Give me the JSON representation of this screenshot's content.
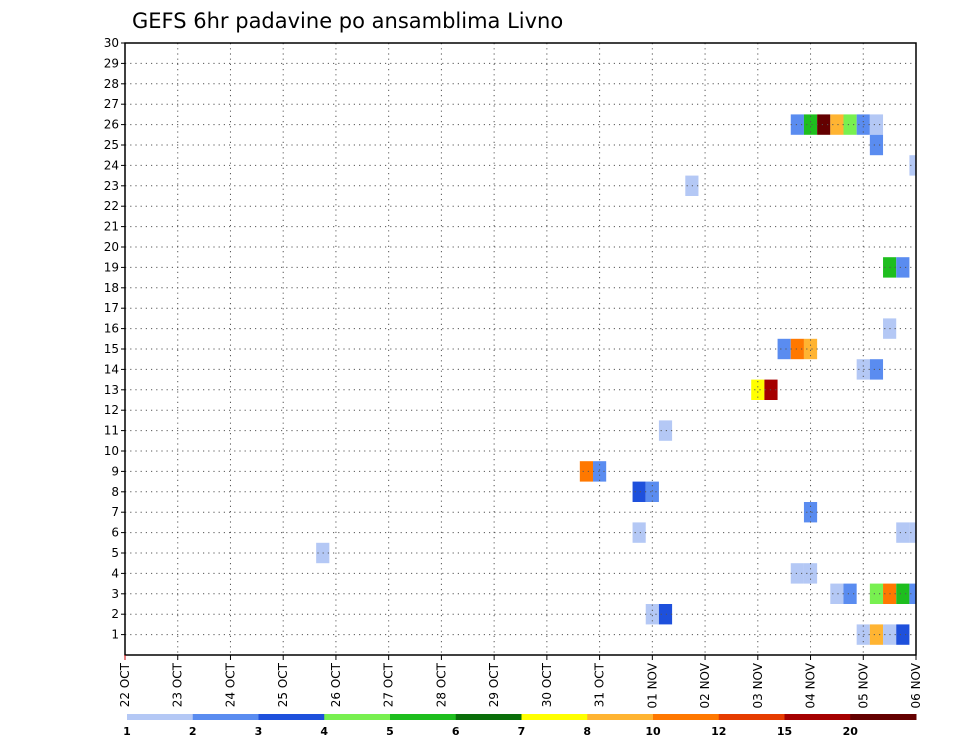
{
  "chart_data": {
    "type": "heatmap",
    "title": "GEFS 6hr padavine po ansamblima Livno",
    "xlabel": "",
    "ylabel": "",
    "x_ticks": [
      "22 OCT",
      "23 OCT",
      "24 OCT",
      "25 OCT",
      "26 OCT",
      "27 OCT",
      "28 OCT",
      "29 OCT",
      "30 OCT",
      "31 OCT",
      "01 NOV",
      "02 NOV",
      "03 NOV",
      "04 NOV",
      "05 NOV",
      "06 NOV"
    ],
    "y_ticks": [
      1,
      2,
      3,
      4,
      5,
      6,
      7,
      8,
      9,
      10,
      11,
      12,
      13,
      14,
      15,
      16,
      17,
      18,
      19,
      20,
      21,
      22,
      23,
      24,
      25,
      26,
      27,
      28,
      29,
      30
    ],
    "ylim": [
      0,
      30
    ],
    "grid": true,
    "colorbar": {
      "labels": [
        "1",
        "2",
        "3",
        "4",
        "5",
        "6",
        "7",
        "8",
        "10",
        "12",
        "15",
        "20"
      ],
      "colors": [
        "#b4c8f5",
        "#5a8cf0",
        "#1e50dc",
        "#78f050",
        "#1ebe1e",
        "#0a6e0a",
        "#ffff00",
        "#ffb432",
        "#ff7800",
        "#e63c00",
        "#a50000",
        "#640000"
      ]
    },
    "cells": [
      {
        "member": 26,
        "step": 55,
        "level": 2
      },
      {
        "member": 26,
        "step": 56,
        "level": 5
      },
      {
        "member": 26,
        "step": 57,
        "level": 12
      },
      {
        "member": 26,
        "step": 58,
        "level": 8
      },
      {
        "member": 26,
        "step": 59,
        "level": 4
      },
      {
        "member": 26,
        "step": 60,
        "level": 2
      },
      {
        "member": 26,
        "step": 61,
        "level": 1
      },
      {
        "member": 25,
        "step": 61,
        "level": 2
      },
      {
        "member": 24,
        "step": 64,
        "level": 1
      },
      {
        "member": 23,
        "step": 47,
        "level": 1
      },
      {
        "member": 19,
        "step": 62,
        "level": 5
      },
      {
        "member": 19,
        "step": 63,
        "level": 2
      },
      {
        "member": 16,
        "step": 62,
        "level": 1
      },
      {
        "member": 15,
        "step": 54,
        "level": 2
      },
      {
        "member": 15,
        "step": 55,
        "level": 9
      },
      {
        "member": 15,
        "step": 56,
        "level": 8
      },
      {
        "member": 14,
        "step": 60,
        "level": 1
      },
      {
        "member": 14,
        "step": 61,
        "level": 2
      },
      {
        "member": 13,
        "step": 52,
        "level": 7
      },
      {
        "member": 13,
        "step": 53,
        "level": 11
      },
      {
        "member": 11,
        "step": 45,
        "level": 1
      },
      {
        "member": 9,
        "step": 39,
        "level": 9
      },
      {
        "member": 9,
        "step": 40,
        "level": 2
      },
      {
        "member": 8,
        "step": 43,
        "level": 3
      },
      {
        "member": 8,
        "step": 44,
        "level": 2
      },
      {
        "member": 7,
        "step": 56,
        "level": 2
      },
      {
        "member": 6,
        "step": 43,
        "level": 1
      },
      {
        "member": 6,
        "step": 63,
        "level": 1
      },
      {
        "member": 6,
        "step": 64,
        "level": 1
      },
      {
        "member": 5,
        "step": 19,
        "level": 1
      },
      {
        "member": 4,
        "step": 55,
        "level": 1
      },
      {
        "member": 4,
        "step": 56,
        "level": 1
      },
      {
        "member": 3,
        "step": 58,
        "level": 1
      },
      {
        "member": 3,
        "step": 59,
        "level": 2
      },
      {
        "member": 3,
        "step": 61,
        "level": 4
      },
      {
        "member": 3,
        "step": 62,
        "level": 9
      },
      {
        "member": 3,
        "step": 63,
        "level": 5
      },
      {
        "member": 3,
        "step": 64,
        "level": 2
      },
      {
        "member": 2,
        "step": 44,
        "level": 1
      },
      {
        "member": 2,
        "step": 45,
        "level": 3
      },
      {
        "member": 1,
        "step": 60,
        "level": 1
      },
      {
        "member": 1,
        "step": 61,
        "level": 8
      },
      {
        "member": 1,
        "step": 62,
        "level": 1
      },
      {
        "member": 1,
        "step": 63,
        "level": 3
      }
    ]
  }
}
